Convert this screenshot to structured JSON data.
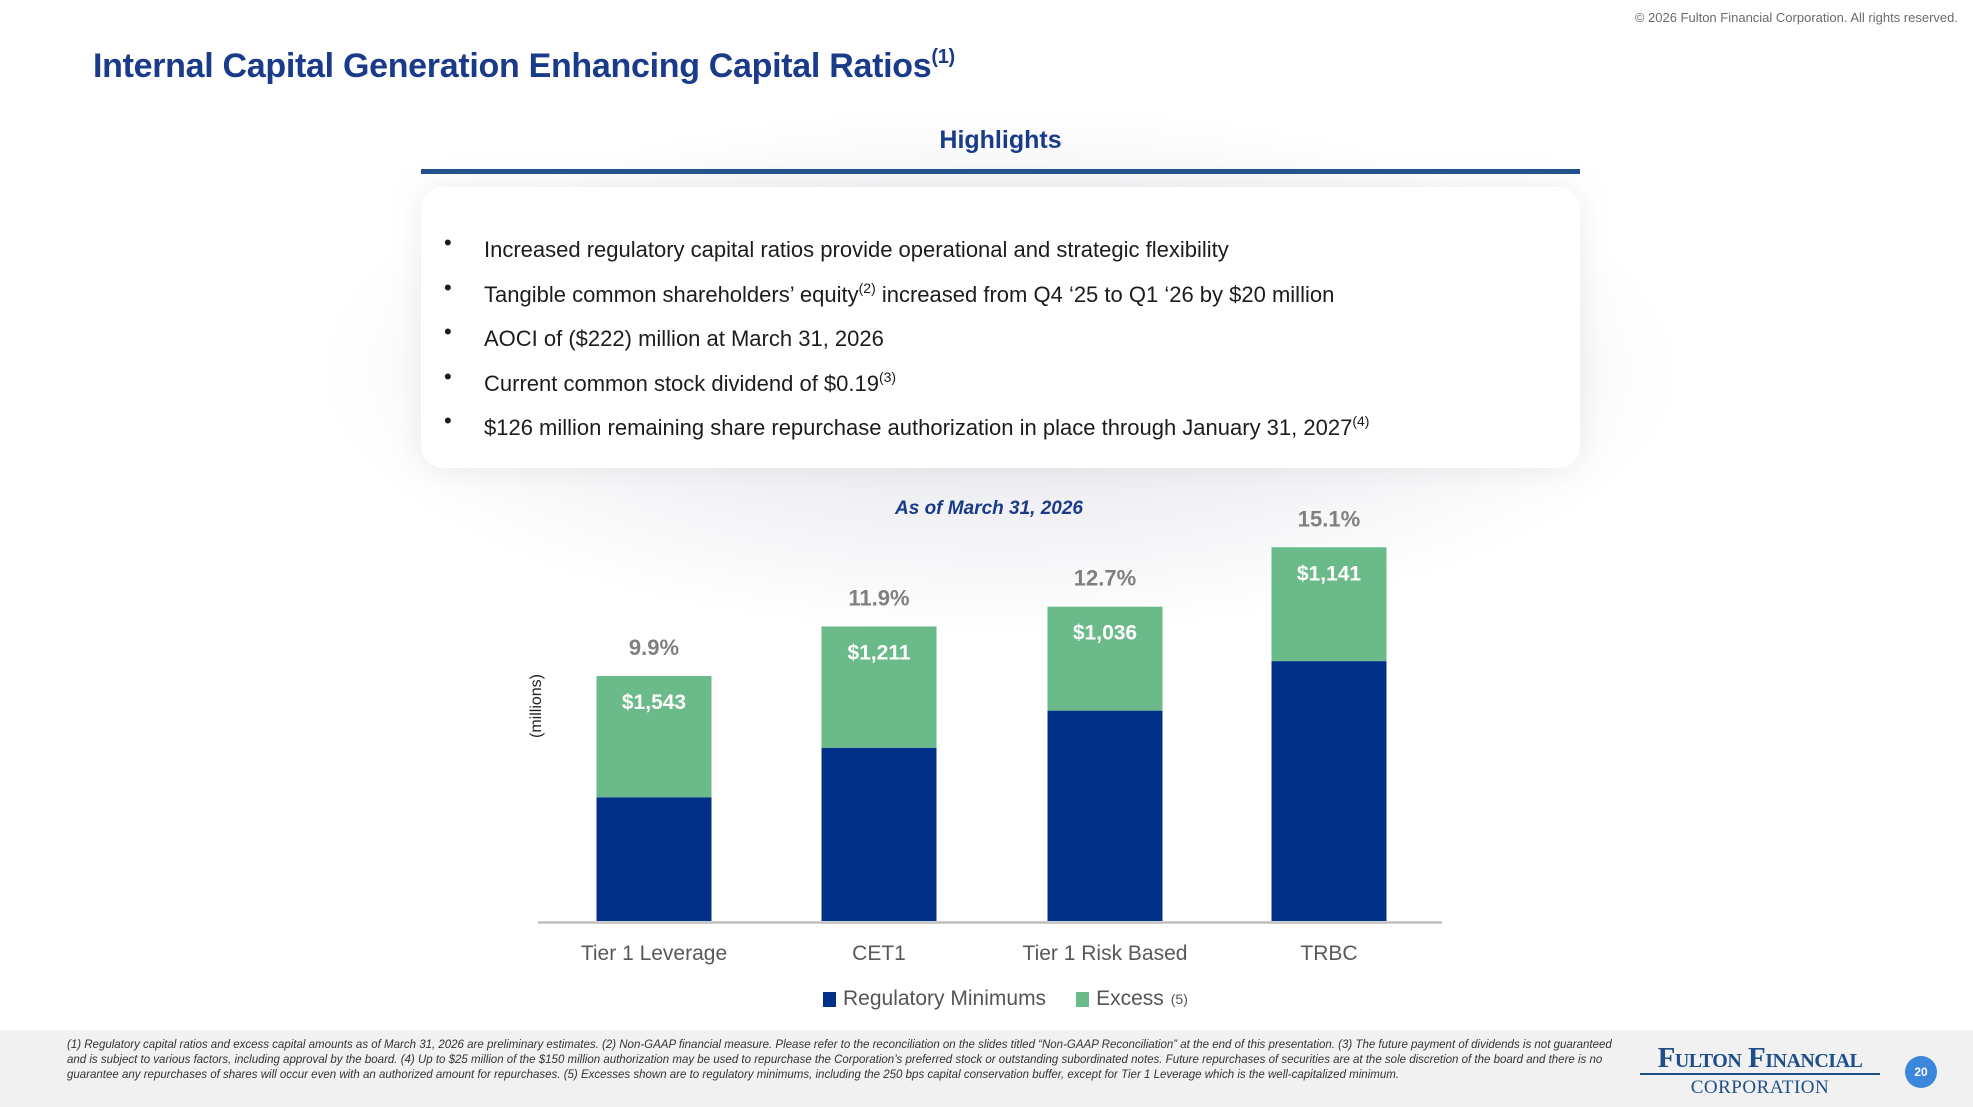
{
  "copyright": "© 2026 Fulton Financial Corporation. All rights reserved.",
  "title": {
    "text": "Internal Capital Generation Enhancing Capital Ratios",
    "footnote_ref": "(1)"
  },
  "highlights": {
    "heading": "Highlights",
    "bullets": [
      {
        "before": "Increased regulatory capital ratios provide operational and strategic flexibility",
        "sup": "",
        "after": ""
      },
      {
        "before": "Tangible common shareholders’ equity",
        "sup": "(2)",
        "after": " increased from Q4 ‘25 to Q1 ‘26 by $20 million"
      },
      {
        "before": "AOCI of ($222) million at March 31, 2026",
        "sup": "",
        "after": ""
      },
      {
        "before": "Current common stock dividend of $0.19",
        "sup": "(3)",
        "after": ""
      },
      {
        "before": "$126 million remaining share repurchase authorization in place through January 31, 2027",
        "sup": "(4)",
        "after": ""
      }
    ],
    "bullet_glyph": "•"
  },
  "chart_data": {
    "type": "bar",
    "stacked": true,
    "title": "As of March 31, 2026",
    "xlabel": "",
    "ylabel": "(millions)",
    "categories": [
      "Tier 1 Leverage",
      "CET1",
      "Tier 1 Risk Based",
      "TRBC"
    ],
    "ratio_labels": [
      "9.9%",
      "11.9%",
      "12.7%",
      "15.1%"
    ],
    "ratios_pct": [
      9.9,
      11.9,
      12.7,
      15.1
    ],
    "series": [
      {
        "name": "Regulatory Minimums",
        "color": "#003087",
        "values_pct": [
          5.0,
          7.0,
          8.5,
          10.5
        ]
      },
      {
        "name": "Excess",
        "footnote_ref": "(5)",
        "color": "#6BBA8A",
        "values_pct": [
          4.9,
          4.9,
          4.2,
          4.6
        ],
        "excess_millions": [
          1543,
          1211,
          1036,
          1141
        ],
        "data_labels": [
          "$1,543",
          "$1,211",
          "$1,036",
          "$1,141"
        ]
      }
    ],
    "ylim_pct": [
      0,
      15.1
    ],
    "grid": false,
    "legend": "bottom"
  },
  "footnote": "(1) Regulatory capital ratios and excess capital amounts as of March 31, 2026 are preliminary estimates. (2) Non-GAAP financial measure. Please refer to the reconciliation on the slides titled “Non-GAAP Reconciliation” at the end of this presentation. (3) The future payment of dividends is not guaranteed and is subject to various factors, including approval by the board. (4) Up to $25 million of the $150 million authorization may be used to repurchase the Corporation’s preferred stock or outstanding subordinated notes. Future repurchases of securities are at the sole discretion of the board and there is no guarantee any repurchases of shares will occur even with an authorized amount for repurchases. (5) Excesses shown are to regulatory minimums, including the 250 bps capital conservation buffer, except for Tier 1 Leverage which is the well-capitalized minimum.",
  "logo": {
    "line1": "Fulton Financial",
    "line2": "CORPORATION"
  },
  "page_number": "20"
}
